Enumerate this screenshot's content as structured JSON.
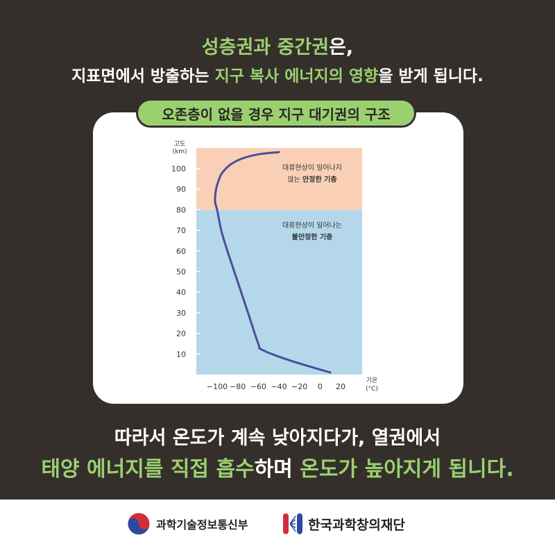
{
  "headline": {
    "line1": [
      {
        "text": "성층권과 중간권",
        "color": "#9bd071"
      },
      {
        "text": "은,",
        "color": "#ffffff"
      }
    ],
    "line2": [
      {
        "text": "지표면에서 방출하는 ",
        "color": "#ffffff"
      },
      {
        "text": "지구 복사 에너지의 영향",
        "color": "#9bd071"
      },
      {
        "text": "을 받게 됩니다.",
        "color": "#ffffff"
      }
    ]
  },
  "card": {
    "title": "오존층이 없을 경우 지구 대기권의 구조"
  },
  "chart_data": {
    "type": "line",
    "xlabel": "기온",
    "xunit": "(°C)",
    "ylabel": "고도",
    "yunit": "(km)",
    "xlim": [
      -120,
      20
    ],
    "ylim": [
      0,
      110
    ],
    "xticks": [
      "−100",
      "−80",
      "−60",
      "−40",
      "−20",
      "0",
      "20"
    ],
    "yticks": [
      "10",
      "20",
      "30",
      "40",
      "50",
      "60",
      "70",
      "80",
      "90",
      "100"
    ],
    "bands": [
      {
        "from": 0,
        "to": 80,
        "color": "#b5d7ea",
        "label_lines": [
          "대류현상이 일어나는",
          "불안정한 기층"
        ],
        "bold_part": "불안정한 기층"
      },
      {
        "from": 80,
        "to": 110,
        "color": "#f9d0b6",
        "label_lines": [
          "대류현상이 일어나지",
          "않는 안정한 기층"
        ],
        "bold_part": "안정한 기층"
      }
    ],
    "series": [
      {
        "color": "#4a4d9c",
        "x": [
          10,
          -30,
          -56,
          -60,
          -70,
          -80,
          -90,
          -96,
          -100,
          -102,
          -101,
          -98,
          -95,
          -87,
          -75,
          -59,
          -40
        ],
        "y": [
          1,
          7,
          12,
          15,
          30,
          45,
          60,
          70,
          80,
          84,
          90,
          95,
          98,
          102,
          105,
          107,
          108
        ]
      }
    ]
  },
  "closing": {
    "line1": [
      {
        "text": "따라서 온도가 계속 낮아지다가, 열권에서",
        "color": "#ffffff"
      }
    ],
    "line2": [
      {
        "text": "태양 에너지를 직접 흡수",
        "color": "#9bd071"
      },
      {
        "text": "하며 ",
        "color": "#ffffff"
      },
      {
        "text": "온도가 높아지게 됩니다.",
        "color": "#9bd071"
      }
    ]
  },
  "footer": {
    "org1": "과학기술정보통신부",
    "org2": "한국과학창의재단",
    "logo1_icon": "taegeuk-icon",
    "logo2_icon": "kofac-icon"
  }
}
